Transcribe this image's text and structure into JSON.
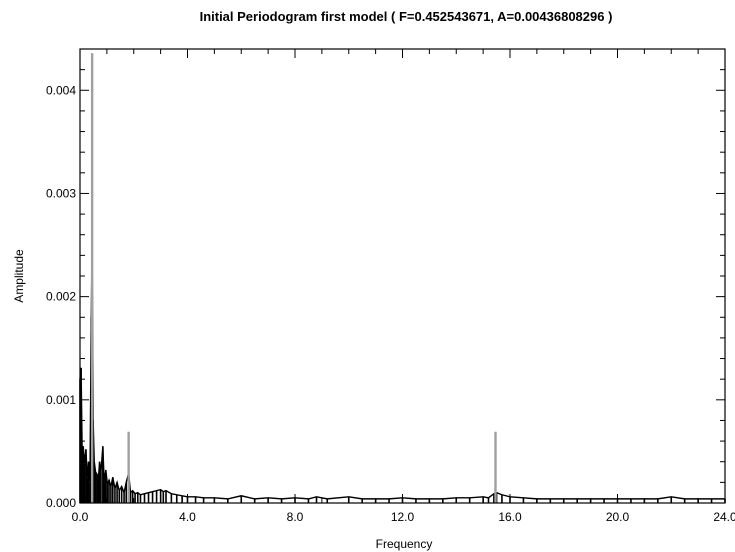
{
  "chart_data": {
    "type": "line",
    "title": "Initial Periodogram first model ( F=0.452543671, A=0.00436808296 )",
    "xlabel": "Frequency",
    "ylabel": "Amplitude",
    "xlim": [
      0.0,
      24.0
    ],
    "ylim": [
      0.0,
      0.0044
    ],
    "x_ticks": [
      {
        "value": 0.0,
        "label": "0.0"
      },
      {
        "value": 4.0,
        "label": "4.0"
      },
      {
        "value": 8.0,
        "label": "8.0"
      },
      {
        "value": 12.0,
        "label": "12.0"
      },
      {
        "value": 16.0,
        "label": "16.0"
      },
      {
        "value": 20.0,
        "label": "20.0"
      },
      {
        "value": 24.0,
        "label": "24.0"
      }
    ],
    "y_ticks": [
      {
        "value": 0.0,
        "label": "0.000"
      },
      {
        "value": 0.001,
        "label": "0.001"
      },
      {
        "value": 0.002,
        "label": "0.002"
      },
      {
        "value": 0.003,
        "label": "0.003"
      },
      {
        "value": 0.004,
        "label": "0.004"
      }
    ],
    "grid": false,
    "legend": "none",
    "series": [
      {
        "color": "#000000",
        "style": "spectrum",
        "points": [
          [
            0.0,
            0.0012
          ],
          [
            0.04,
            0.00131
          ],
          [
            0.08,
            0.0005
          ],
          [
            0.12,
            0.00055
          ],
          [
            0.17,
            0.00038
          ],
          [
            0.22,
            0.00052
          ],
          [
            0.27,
            0.00025
          ],
          [
            0.32,
            0.0004
          ],
          [
            0.37,
            0.0002
          ],
          [
            0.42,
            0.0018
          ],
          [
            0.45,
            0.00257
          ],
          [
            0.49,
            0.0008
          ],
          [
            0.53,
            0.0004
          ],
          [
            0.58,
            0.0003
          ],
          [
            0.63,
            0.00028
          ],
          [
            0.68,
            0.00022
          ],
          [
            0.73,
            0.0004
          ],
          [
            0.78,
            0.0003
          ],
          [
            0.85,
            0.00055
          ],
          [
            0.9,
            0.0002
          ],
          [
            0.96,
            0.00032
          ],
          [
            1.02,
            0.00018
          ],
          [
            1.08,
            0.00022
          ],
          [
            1.15,
            0.00016
          ],
          [
            1.22,
            0.00025
          ],
          [
            1.3,
            0.00014
          ],
          [
            1.38,
            0.0002
          ],
          [
            1.46,
            0.00012
          ],
          [
            1.55,
            0.00016
          ],
          [
            1.64,
            0.0001
          ],
          [
            1.72,
            0.0002
          ],
          [
            1.81,
            0.00029
          ],
          [
            1.88,
            0.0001
          ],
          [
            1.96,
            0.00012
          ],
          [
            2.05,
            9e-05
          ],
          [
            2.15,
            0.0001
          ],
          [
            2.25,
            8e-05
          ],
          [
            2.4,
            9e-05
          ],
          [
            2.55,
            0.0001
          ],
          [
            2.7,
            0.00011
          ],
          [
            2.85,
            0.00012
          ],
          [
            3.0,
            0.00013
          ],
          [
            3.1,
            0.00011
          ],
          [
            3.2,
            0.00012
          ],
          [
            3.4,
            9e-05
          ],
          [
            3.6,
            8e-05
          ],
          [
            3.8,
            7e-05
          ],
          [
            4.0,
            6e-05
          ],
          [
            4.3,
            6e-05
          ],
          [
            4.6,
            5e-05
          ],
          [
            5.0,
            5e-05
          ],
          [
            5.5,
            4e-05
          ],
          [
            6.0,
            7e-05
          ],
          [
            6.5,
            4e-05
          ],
          [
            7.0,
            5e-05
          ],
          [
            7.5,
            4e-05
          ],
          [
            8.0,
            5e-05
          ],
          [
            8.5,
            4e-05
          ],
          [
            8.8,
            6e-05
          ],
          [
            9.2,
            4e-05
          ],
          [
            10.0,
            6e-05
          ],
          [
            10.5,
            4e-05
          ],
          [
            11.0,
            4e-05
          ],
          [
            11.5,
            4e-05
          ],
          [
            12.0,
            5e-05
          ],
          [
            12.5,
            4e-05
          ],
          [
            13.0,
            4e-05
          ],
          [
            13.5,
            4e-05
          ],
          [
            14.0,
            5e-05
          ],
          [
            14.5,
            5e-05
          ],
          [
            15.0,
            6e-05
          ],
          [
            15.2,
            5e-05
          ],
          [
            15.4,
            9e-05
          ],
          [
            15.5,
            0.0001
          ],
          [
            15.7,
            8e-05
          ],
          [
            16.0,
            6e-05
          ],
          [
            16.5,
            5e-05
          ],
          [
            17.0,
            4e-05
          ],
          [
            17.5,
            4e-05
          ],
          [
            18.0,
            4e-05
          ],
          [
            18.5,
            4e-05
          ],
          [
            19.0,
            4e-05
          ],
          [
            19.5,
            4e-05
          ],
          [
            20.0,
            4e-05
          ],
          [
            20.5,
            4e-05
          ],
          [
            21.0,
            4e-05
          ],
          [
            21.5,
            4e-05
          ],
          [
            22.0,
            6e-05
          ],
          [
            22.5,
            4e-05
          ],
          [
            23.0,
            4e-05
          ],
          [
            23.5,
            4e-05
          ],
          [
            24.0,
            4e-05
          ]
        ]
      },
      {
        "color": "#a0a0a0",
        "style": "spikes",
        "points": [
          [
            0.452,
            0.00436
          ],
          [
            1.81,
            0.00069
          ],
          [
            15.46,
            0.00069
          ]
        ]
      }
    ]
  }
}
